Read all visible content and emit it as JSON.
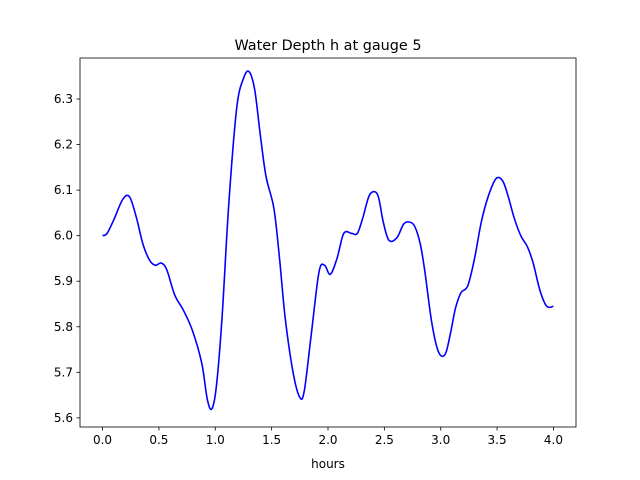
{
  "chart_data": {
    "type": "line",
    "title": "Water Depth h at gauge 5",
    "xlabel": "hours",
    "ylabel": "",
    "xlim": [
      -0.2,
      4.2
    ],
    "ylim": [
      5.58,
      6.39
    ],
    "xticks": [
      0.0,
      0.5,
      1.0,
      1.5,
      2.0,
      2.5,
      3.0,
      3.5,
      4.0
    ],
    "xtick_labels": [
      "0.0",
      "0.5",
      "1.0",
      "1.5",
      "2.0",
      "2.5",
      "3.0",
      "3.5",
      "4.0"
    ],
    "yticks": [
      5.6,
      5.7,
      5.8,
      5.9,
      6.0,
      6.1,
      6.2,
      6.3
    ],
    "ytick_labels": [
      "5.6",
      "5.7",
      "5.8",
      "5.9",
      "6.0",
      "6.1",
      "6.2",
      "6.3"
    ],
    "grid": false,
    "series": [
      {
        "color": "#0000ff",
        "x": [
          0.0,
          0.04,
          0.1,
          0.18,
          0.24,
          0.3,
          0.36,
          0.42,
          0.47,
          0.52,
          0.57,
          0.64,
          0.72,
          0.8,
          0.88,
          0.93,
          0.97,
          1.01,
          1.06,
          1.12,
          1.19,
          1.25,
          1.3,
          1.35,
          1.4,
          1.45,
          1.52,
          1.57,
          1.62,
          1.69,
          1.75,
          1.79,
          1.85,
          1.92,
          1.97,
          2.02,
          2.08,
          2.14,
          2.21,
          2.26,
          2.31,
          2.37,
          2.44,
          2.49,
          2.54,
          2.61,
          2.67,
          2.72,
          2.77,
          2.82,
          2.86,
          2.92,
          2.98,
          3.04,
          3.09,
          3.13,
          3.18,
          3.24,
          3.3,
          3.36,
          3.42,
          3.49,
          3.55,
          3.6,
          3.65,
          3.71,
          3.77,
          3.82,
          3.88,
          3.94,
          4.0
        ],
        "y": [
          6.0,
          6.005,
          6.035,
          6.08,
          6.085,
          6.04,
          5.98,
          5.945,
          5.935,
          5.94,
          5.925,
          5.87,
          5.835,
          5.79,
          5.72,
          5.64,
          5.62,
          5.67,
          5.82,
          6.07,
          6.28,
          6.345,
          6.36,
          6.32,
          6.22,
          6.13,
          6.06,
          5.95,
          5.82,
          5.7,
          5.645,
          5.66,
          5.78,
          5.92,
          5.935,
          5.915,
          5.95,
          6.005,
          6.005,
          6.005,
          6.04,
          6.09,
          6.09,
          6.03,
          5.99,
          5.995,
          6.025,
          6.03,
          6.02,
          5.98,
          5.92,
          5.81,
          5.745,
          5.74,
          5.79,
          5.84,
          5.875,
          5.89,
          5.95,
          6.03,
          6.085,
          6.125,
          6.12,
          6.085,
          6.04,
          6.0,
          5.975,
          5.94,
          5.88,
          5.845,
          5.845
        ]
      }
    ]
  }
}
